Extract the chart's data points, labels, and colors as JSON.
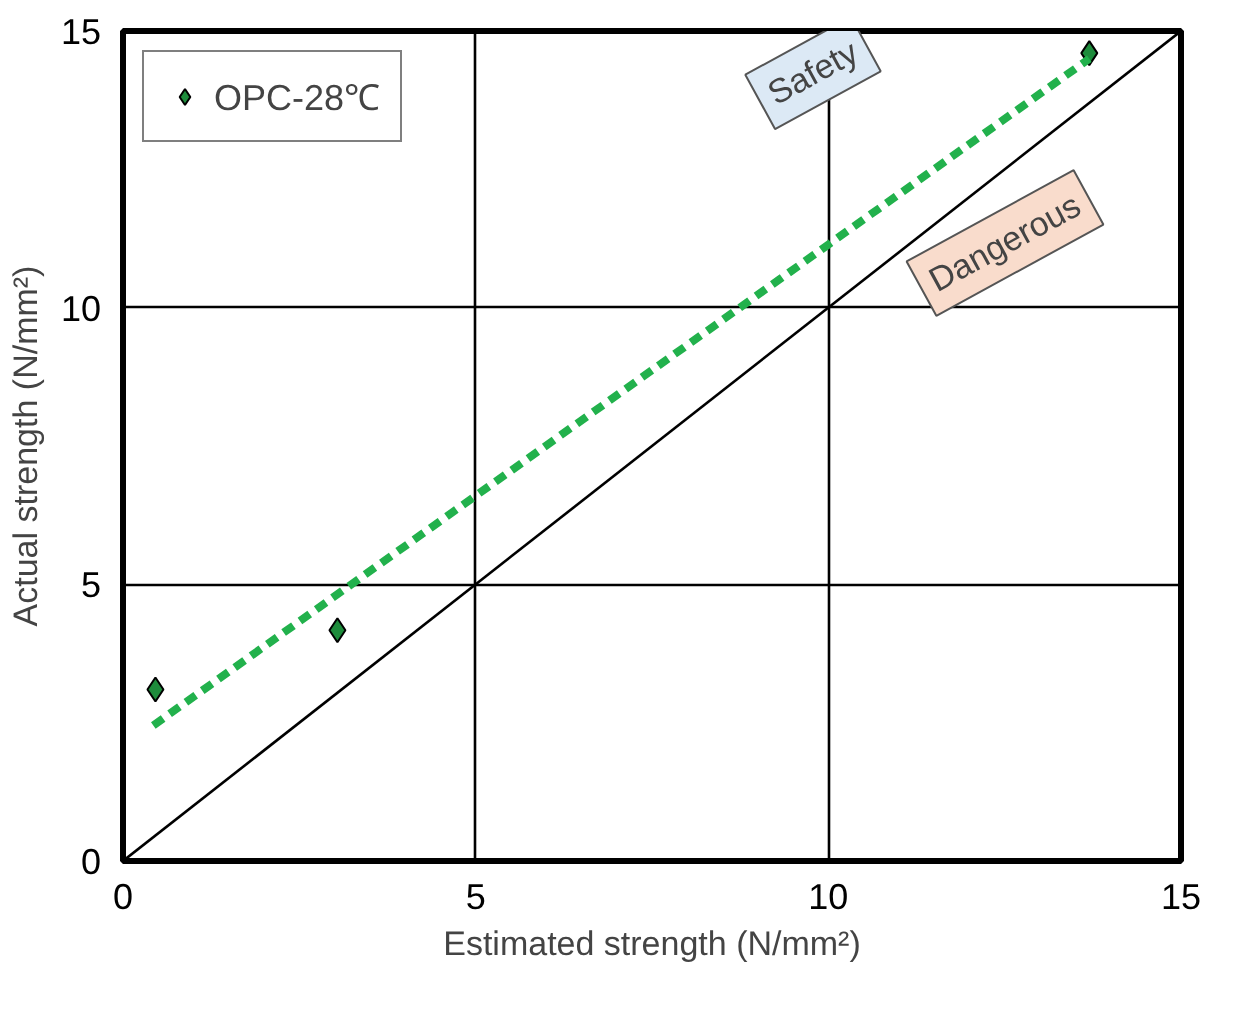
{
  "chart_data": {
    "type": "scatter",
    "xlabel": "Estimated strength (N/mm²)",
    "ylabel": "Actual strength (N/mm²)",
    "xlim": [
      0,
      15
    ],
    "ylim": [
      0,
      15
    ],
    "xticks": [
      0,
      5,
      10,
      15
    ],
    "yticks": [
      0,
      5,
      10,
      15
    ],
    "grid": true,
    "legend": "top left",
    "series": [
      {
        "name": "OPC-28℃",
        "type": "scatter",
        "marker": "diamond",
        "color": "#1e8c3c",
        "x": [
          0.46,
          3.04,
          13.7
        ],
        "values": [
          3.1,
          4.17,
          14.6
        ]
      },
      {
        "type": "line",
        "line_style": "dashed",
        "color": "#22b14c",
        "x": [
          0.43,
          5,
          13.7
        ],
        "values": [
          2.45,
          6.6,
          14.5
        ]
      },
      {
        "type": "line",
        "line_style": "solid",
        "color": "#000000",
        "x": [
          0,
          15
        ],
        "values": [
          0,
          15
        ]
      }
    ],
    "annotations": [
      "Safety",
      "Dangerous"
    ]
  }
}
